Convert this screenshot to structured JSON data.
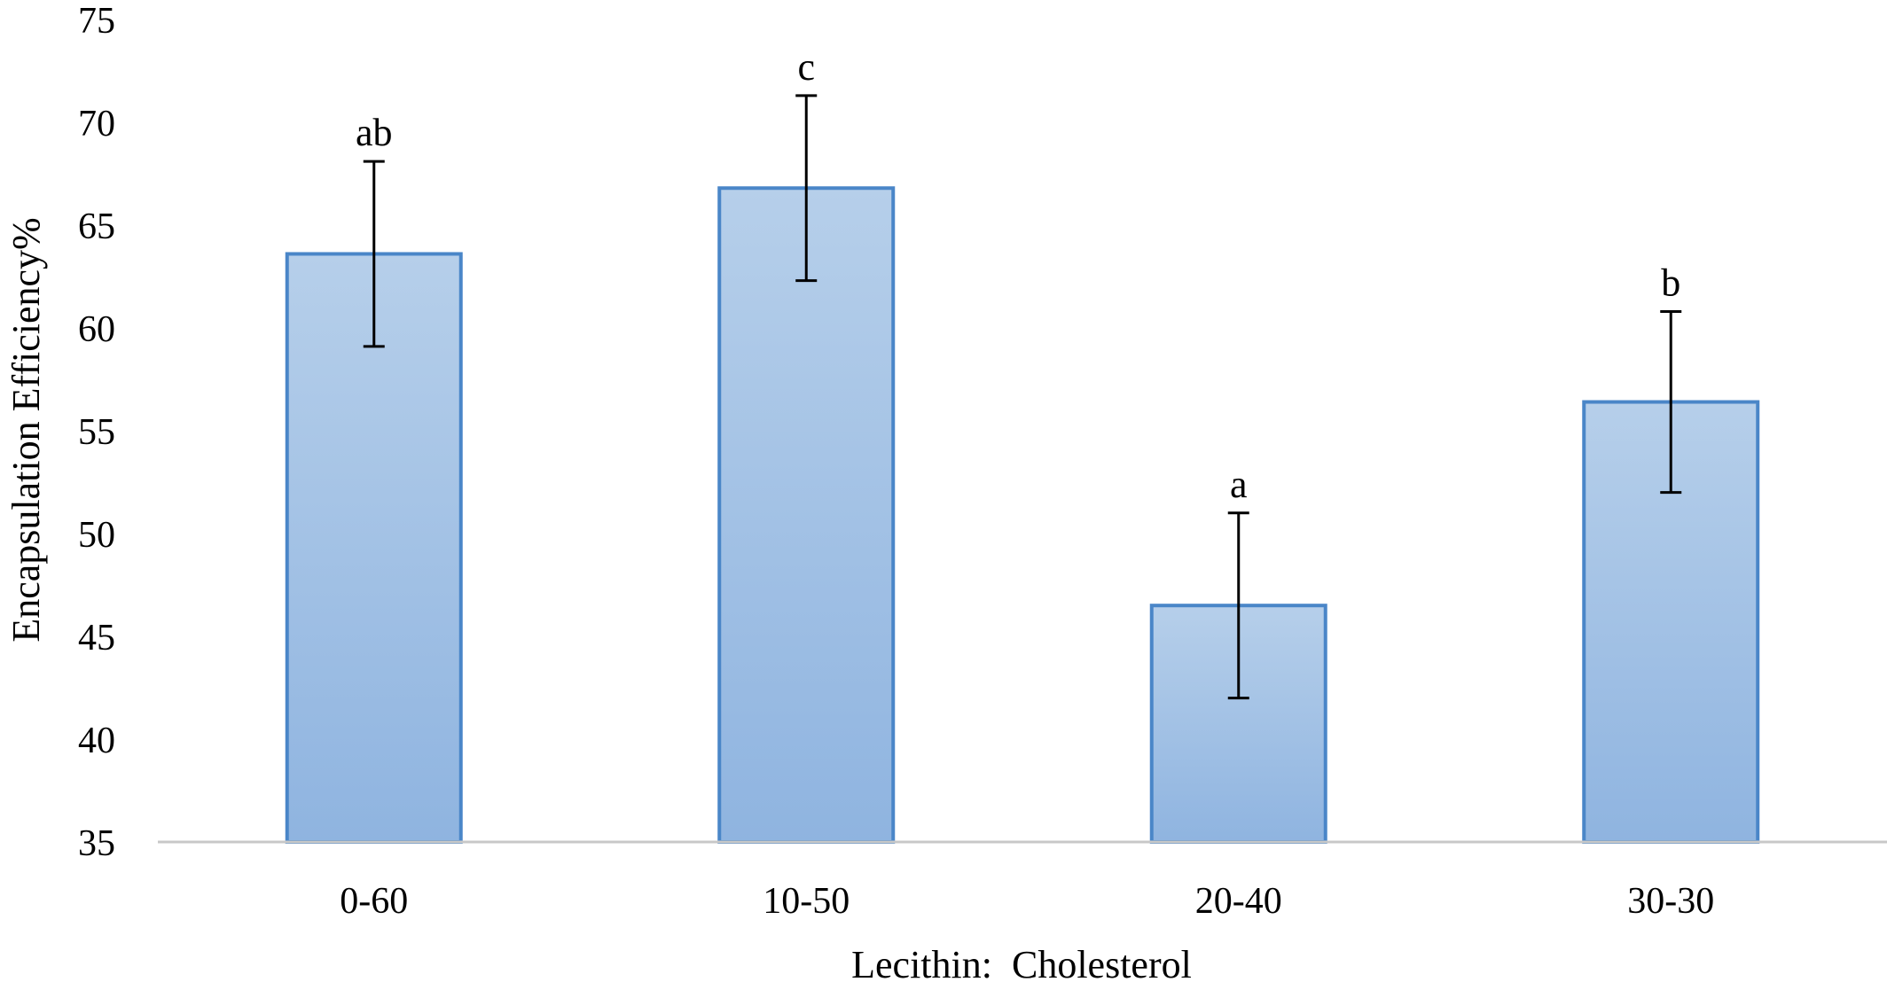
{
  "chart_data": {
    "type": "bar",
    "title": "",
    "xlabel": "Lecithin:  Cholesterol",
    "ylabel": "Encapsulation Efficiency%",
    "categories": [
      "0-60",
      "10-50",
      "20-40",
      "30-30"
    ],
    "values": [
      63.6,
      66.8,
      46.5,
      56.4
    ],
    "error": [
      4.5,
      4.5,
      4.5,
      4.4
    ],
    "significance": [
      "ab",
      "c",
      "a",
      "b"
    ],
    "ylim": [
      35,
      75
    ],
    "yticks": [
      35,
      40,
      45,
      50,
      55,
      60,
      65,
      70,
      75
    ],
    "grid": false,
    "legend": "none",
    "colors": {
      "bar_fill_top": "#b6cfea",
      "bar_fill_bottom": "#8fb4e0",
      "bar_stroke": "#4a86c8",
      "axis": "#c8c8c8",
      "error_bar": "#000000"
    }
  }
}
